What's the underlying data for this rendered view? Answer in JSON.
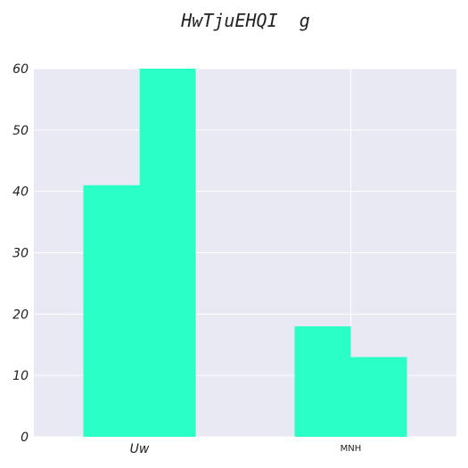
{
  "chart_data": {
    "type": "bar",
    "title": "HwTjuEHQI  g",
    "xlabel": "",
    "ylabel": "",
    "categories": [
      "Uw",
      "MNH"
    ],
    "series": [
      {
        "values": [
          41,
          18
        ],
        "color": "#2affc8"
      },
      {
        "values": [
          60,
          13
        ],
        "color": "#2affc8"
      }
    ],
    "ylim": [
      0,
      60
    ],
    "yticks": [
      0,
      10,
      20,
      30,
      40,
      50,
      60
    ],
    "grid": true,
    "legend": "none",
    "background": "#e8e9f2",
    "grid_color": "#ffffff"
  }
}
